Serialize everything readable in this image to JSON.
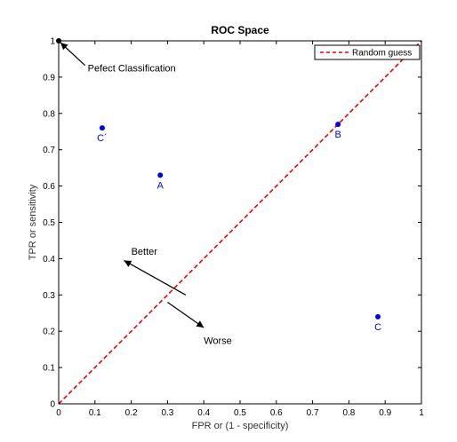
{
  "chart_data": {
    "type": "scatter",
    "title": "ROC Space",
    "xlabel": "FPR or (1 - specificity)",
    "ylabel": "TPR or sensitivity",
    "xlim": [
      0,
      1
    ],
    "ylim": [
      0,
      1
    ],
    "xticks": [
      "0",
      "0.1",
      "0.2",
      "0.3",
      "0.4",
      "0.5",
      "0.6",
      "0.7",
      "0.8",
      "0.9",
      "1"
    ],
    "yticks": [
      "0",
      "0.1",
      "0.2",
      "0.3",
      "0.4",
      "0.5",
      "0.6",
      "0.7",
      "0.8",
      "0.9",
      "1"
    ],
    "grid": false,
    "legend_position": "top-right",
    "point_color": "#0000ee",
    "points": [
      {
        "label": "A",
        "x": 0.28,
        "y": 0.63,
        "label_pos": "below"
      },
      {
        "label": "B",
        "x": 0.77,
        "y": 0.77,
        "label_pos": "below"
      },
      {
        "label": "C",
        "x": 0.88,
        "y": 0.24,
        "label_pos": "below"
      },
      {
        "label": "C´",
        "x": 0.12,
        "y": 0.76,
        "label_pos": "below"
      },
      {
        "label": "",
        "x": 0.0,
        "y": 1.0,
        "color": "#000000"
      }
    ],
    "series": [
      {
        "name": "Random guess",
        "x": [
          0,
          1
        ],
        "y": [
          0,
          1
        ],
        "style": "dashed",
        "color": "#ee0000"
      }
    ],
    "annotations": [
      {
        "text": "Pefect Classification",
        "x": 0.08,
        "y": 0.925,
        "arrow_to": [
          0.0,
          1.0
        ]
      },
      {
        "text": "Better",
        "x": 0.2,
        "y": 0.42,
        "arrow_from": [
          0.35,
          0.3
        ],
        "arrow_to": [
          0.18,
          0.395
        ]
      },
      {
        "text": "Worse",
        "x": 0.4,
        "y": 0.175,
        "arrow_from": [
          0.3,
          0.28
        ],
        "arrow_to": [
          0.4,
          0.21
        ]
      }
    ]
  }
}
